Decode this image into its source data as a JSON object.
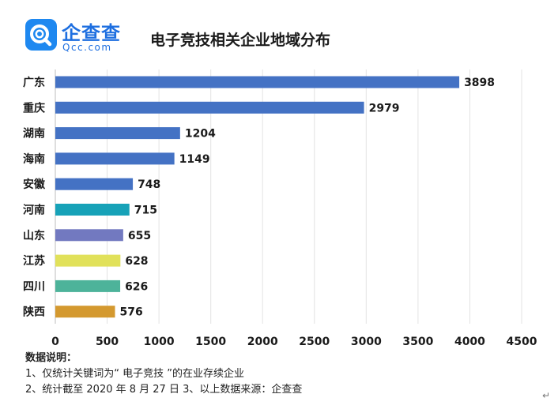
{
  "logo": {
    "cn": "企查查",
    "en": "Qcc.com"
  },
  "chart_data": {
    "type": "bar",
    "orientation": "horizontal",
    "title": "电子竞技相关企业地域分布",
    "categories": [
      "广东",
      "重庆",
      "湖南",
      "海南",
      "安徽",
      "河南",
      "山东",
      "江苏",
      "四川",
      "陕西"
    ],
    "values": [
      3898,
      2979,
      1204,
      1149,
      748,
      715,
      655,
      628,
      626,
      576
    ],
    "colors": [
      "#4472c4",
      "#4472c4",
      "#4472c4",
      "#4472c4",
      "#4472c4",
      "#17a2b8",
      "#7279c0",
      "#e1e15a",
      "#4db39a",
      "#d4992f"
    ],
    "xlim": [
      0,
      4500
    ],
    "xticks": [
      0,
      500,
      1000,
      1500,
      2000,
      2500,
      3000,
      3500,
      4000,
      4500
    ],
    "grid": true,
    "xlabel": "",
    "ylabel": ""
  },
  "notes": {
    "heading": "数据说明：",
    "line1": "1、仅统计关键词为“ 电子竞技 ”的在业存续企业",
    "line2": "2、统计截至 2020 年 8 月 27 日   3、以上数据来源：企查查"
  },
  "return_mark": "↵"
}
